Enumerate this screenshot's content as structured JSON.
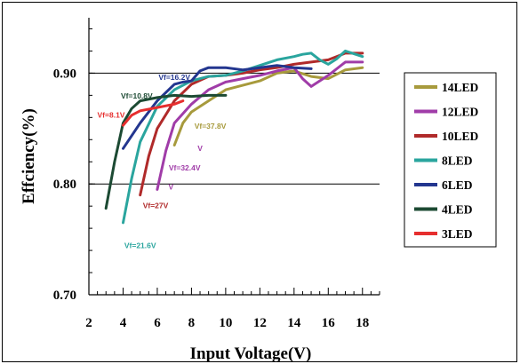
{
  "chart_data": {
    "type": "line",
    "title": "",
    "xlabel": "Input Voltage(V)",
    "ylabel": "Effciency(%)",
    "xlim": [
      2,
      19
    ],
    "ylim": [
      0.7,
      0.95
    ],
    "xticks": [
      2,
      4,
      6,
      8,
      10,
      12,
      14,
      16,
      18
    ],
    "xtick_labels": [
      "2",
      "4",
      "6",
      "8",
      "10",
      "12",
      "14",
      "16",
      "18"
    ],
    "yticks": [
      0.7,
      0.8,
      0.9
    ],
    "ytick_labels": [
      "0.70",
      "0.80",
      "0.90"
    ],
    "grid": "horizontal at 0.80 and 0.90",
    "legend_position": "right",
    "series": [
      {
        "name": "14LED",
        "color": "#a79a3c",
        "x": [
          7.0,
          7.5,
          8.0,
          9.0,
          10.0,
          11.0,
          12.0,
          13.0,
          14.0,
          15.0,
          16.0,
          17.0,
          18.0
        ],
        "y": [
          0.835,
          0.855,
          0.865,
          0.875,
          0.885,
          0.889,
          0.893,
          0.9,
          0.902,
          0.897,
          0.895,
          0.903,
          0.905
        ]
      },
      {
        "name": "12LED",
        "color": "#a03ca8",
        "x": [
          6.0,
          6.5,
          7.0,
          8.0,
          9.0,
          10.0,
          11.0,
          12.0,
          13.0,
          14.0,
          14.5,
          15.0,
          15.5,
          16.0,
          17.0,
          18.0
        ],
        "y": [
          0.795,
          0.83,
          0.855,
          0.872,
          0.885,
          0.892,
          0.895,
          0.898,
          0.902,
          0.905,
          0.895,
          0.888,
          0.893,
          0.898,
          0.91,
          0.91
        ]
      },
      {
        "name": "10LED",
        "color": "#b02a2a",
        "x": [
          5.0,
          5.5,
          6.0,
          7.0,
          8.0,
          9.0,
          10.0,
          11.0,
          12.0,
          13.0,
          14.0,
          15.0,
          16.0,
          17.0,
          18.0
        ],
        "y": [
          0.79,
          0.825,
          0.85,
          0.875,
          0.89,
          0.897,
          0.898,
          0.9,
          0.903,
          0.905,
          0.908,
          0.91,
          0.912,
          0.918,
          0.918
        ]
      },
      {
        "name": "8LED",
        "color": "#2aa59e",
        "x": [
          4.0,
          4.5,
          5.0,
          6.0,
          7.0,
          8.0,
          9.0,
          10.0,
          11.0,
          12.0,
          13.0,
          14.0,
          14.5,
          15.0,
          15.5,
          16.0,
          16.5,
          17.0,
          18.0
        ],
        "y": [
          0.765,
          0.805,
          0.838,
          0.87,
          0.885,
          0.893,
          0.897,
          0.898,
          0.902,
          0.907,
          0.912,
          0.915,
          0.917,
          0.918,
          0.912,
          0.908,
          0.913,
          0.92,
          0.915
        ]
      },
      {
        "name": "6LED",
        "color": "#23368f",
        "x": [
          4.0,
          5.0,
          6.0,
          7.0,
          7.5,
          8.0,
          8.5,
          9.0,
          10.0,
          11.0,
          12.0,
          13.0,
          14.0,
          15.0
        ],
        "y": [
          0.832,
          0.855,
          0.875,
          0.89,
          0.892,
          0.893,
          0.902,
          0.905,
          0.905,
          0.903,
          0.905,
          0.907,
          0.905,
          0.904
        ]
      },
      {
        "name": "4LED",
        "color": "#1c4a33",
        "x": [
          3.0,
          3.5,
          4.0,
          4.5,
          5.0,
          6.0,
          7.0,
          8.0,
          9.0,
          10.0
        ],
        "y": [
          0.778,
          0.82,
          0.855,
          0.868,
          0.875,
          0.878,
          0.88,
          0.879,
          0.88,
          0.88
        ]
      },
      {
        "name": "3LED",
        "color": "#e62e2e",
        "x": [
          4.0,
          4.5,
          5.0,
          6.0,
          7.0,
          7.5
        ],
        "y": [
          0.853,
          0.862,
          0.866,
          0.869,
          0.872,
          0.875
        ]
      }
    ],
    "annotations": [
      {
        "text": "Vf=16.2V",
        "color": "#23368f",
        "x": 7.0,
        "y": 0.894
      },
      {
        "text": "Vf=10.8V",
        "color": "#1c4a33",
        "x": 4.8,
        "y": 0.877
      },
      {
        "text": "Vf=8.1V",
        "color": "#e62e2e",
        "x": 3.3,
        "y": 0.86
      },
      {
        "text": "Vf=37.8V",
        "color": "#a79a3c",
        "x": 9.1,
        "y": 0.85
      },
      {
        "text": "V",
        "color": "#a03ca8",
        "x": 8.5,
        "y": 0.83
      },
      {
        "text": "Vf=32.4V",
        "color": "#a03ca8",
        "x": 7.6,
        "y": 0.812
      },
      {
        "text": "V",
        "color": "#a03ca8",
        "x": 6.8,
        "y": 0.795
      },
      {
        "text": "Vf=27V",
        "color": "#b02a2a",
        "x": 5.9,
        "y": 0.778
      },
      {
        "text": "Vf=21.6V",
        "color": "#2aa59e",
        "x": 5.0,
        "y": 0.742
      }
    ]
  }
}
